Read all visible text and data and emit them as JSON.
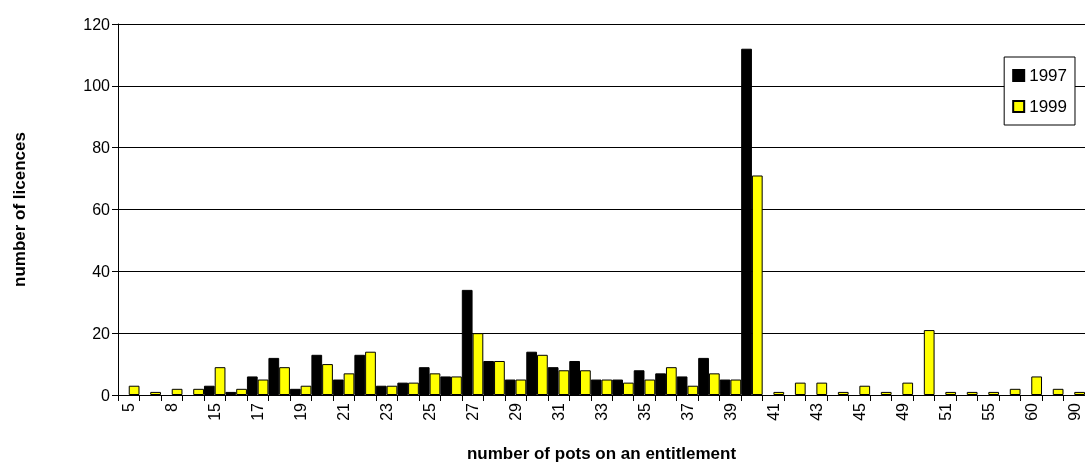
{
  "chart_data": {
    "type": "bar",
    "xlabel": "number of pots on an entitlement",
    "ylabel": "number of licences",
    "categories": [
      "5",
      null,
      "8",
      null,
      "15",
      null,
      "17",
      null,
      "19",
      null,
      "21",
      null,
      "23",
      null,
      "25",
      null,
      "27",
      null,
      "29",
      null,
      "31",
      null,
      "33",
      null,
      "35",
      null,
      "37",
      null,
      "39",
      null,
      "41",
      null,
      "43",
      null,
      "45",
      null,
      "49",
      null,
      "51",
      null,
      "55",
      null,
      "60",
      null,
      "90"
    ],
    "series": [
      {
        "name": "1997",
        "color": "#000000",
        "values": [
          null,
          null,
          null,
          null,
          3,
          1,
          6,
          12,
          2,
          13,
          5,
          13,
          3,
          4,
          9,
          6,
          34,
          11,
          5,
          14,
          9,
          11,
          5,
          5,
          8,
          7,
          6,
          12,
          5,
          112,
          null,
          null,
          null,
          null,
          null,
          null,
          null,
          null,
          null,
          null,
          null,
          null,
          null,
          null,
          null
        ]
      },
      {
        "name": "1999",
        "color": "#ffff00",
        "values": [
          3,
          1,
          2,
          2,
          9,
          2,
          5,
          9,
          3,
          10,
          7,
          14,
          3,
          4,
          7,
          6,
          20,
          11,
          5,
          13,
          8,
          8,
          5,
          4,
          5,
          9,
          3,
          7,
          5,
          71,
          1,
          4,
          4,
          1,
          3,
          1,
          4,
          21,
          1,
          1,
          1,
          2,
          6,
          2,
          1
        ]
      }
    ],
    "ylim": [
      0,
      120
    ],
    "yticks": [
      0,
      20,
      40,
      60,
      80,
      100,
      120
    ],
    "grid": "y",
    "legend": "top right"
  }
}
